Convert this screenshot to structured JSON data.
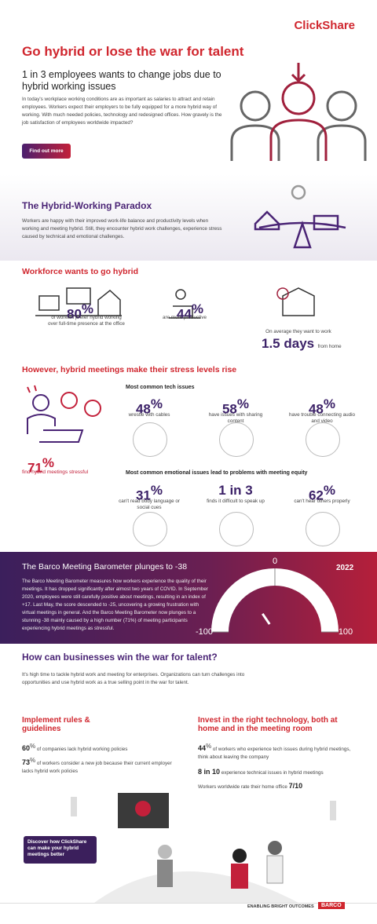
{
  "header": {
    "logo": "ClickShare",
    "title": "Go hybrid or lose the war for talent",
    "subtitle": "1 in 3 employees wants to change jobs due to hybrid working issues",
    "body": "In today's workplace working conditions are as important as salaries to attract and retain employees. Workers expect their employers to be fully equipped for a more hybrid way of working. With much needed policies, technology and redesigned offices. How gravely is the job satisfaction of employees worldwide impacted?",
    "button": "Find out more"
  },
  "paradox": {
    "title": "The Hybrid-Working Paradox",
    "body": "Workers are happy with their improved work-life balance and productivity levels when working and meeting hybrid. Still, they encounter hybrid work challenges, experience stress caused by technical and emotional challenges."
  },
  "workforce": {
    "title": "Workforce wants to go hybrid",
    "stats": [
      {
        "stat": "80",
        "unit": "%",
        "text": "of workers prefer hybrid working over full-time presence at the office"
      },
      {
        "stat": "44",
        "unit": "%",
        "text": "are more productive"
      },
      {
        "pre": "On average they want to work",
        "stat": "1.5 days",
        "text": "from home"
      }
    ]
  },
  "stress": {
    "title": "However, hybrid meetings make their stress levels rise",
    "main": {
      "stat": "71",
      "unit": "%",
      "text": "find hybrid meetings stressful"
    },
    "tech_title": "Most common tech issues",
    "tech": [
      {
        "stat": "48",
        "unit": "%",
        "text": "wrestle with cables"
      },
      {
        "stat": "58",
        "unit": "%",
        "text": "have issues with sharing content"
      },
      {
        "stat": "48",
        "unit": "%",
        "text": "have trouble connecting audio and video"
      }
    ],
    "emo_title": "Most common emotional issues lead to problems with meeting equity",
    "emo": [
      {
        "stat": "31",
        "unit": "%",
        "text": "can't read body language or social cues"
      },
      {
        "stat": "1 in 3",
        "text": "finds it difficult to speak up"
      },
      {
        "stat": "62",
        "unit": "%",
        "text": "can't hear others properly"
      }
    ]
  },
  "barometer": {
    "title": "The Barco Meeting Barometer plunges to -38",
    "body": "The Barco Meeting Barometer measures how workers experience the quality of their meetings. It has dropped significantly after almost two years of COVID. In September 2020, employees were still carefully positive about meetings, resulting in an index of +17. Last May, the score descended to -25, uncovering a growing frustration with virtual meetings in general. And the Barco Meeting Barometer now plunges to a stunning -38 mainly caused by a high number (71%) of meeting participants experiencing hybrid meetings as stressful.",
    "year": "2022",
    "gauge": {
      "min": -100,
      "max": 100,
      "ticks": [
        -100,
        0,
        100
      ],
      "value": -38
    }
  },
  "talent": {
    "title": "How can businesses win the war for talent?",
    "body": "It's high time to tackle hybrid work and meeting for enterprises. Organizations can turn challenges into opportunities and use hybrid work as a true selling point in the war for talent.",
    "left": {
      "title": "Implement rules & guidelines",
      "items": [
        {
          "stat": "60",
          "unit": "%",
          "text": "of companies lack hybrid working policies"
        },
        {
          "stat": "73",
          "unit": "%",
          "text": "of workers consider a new job because their current employer lacks hybrid work policies"
        }
      ]
    },
    "right": {
      "title": "Invest in the right technology, both at home and in the meeting room",
      "items": [
        {
          "stat": "44",
          "unit": "%",
          "text": "of workers who experience tech issues during hybrid meetings, think about leaving the company"
        },
        {
          "stat": "8 in 10",
          "text": "experience technical issues in hybrid meetings"
        },
        {
          "pre": "Workers worldwide rate their home office",
          "stat": "7/10"
        }
      ]
    },
    "button": "Discover how ClickShare can make your hybrid meetings better"
  },
  "footer": {
    "tagline": "ENABLING BRIGHT OUTCOMES",
    "logo": "BARCO"
  }
}
